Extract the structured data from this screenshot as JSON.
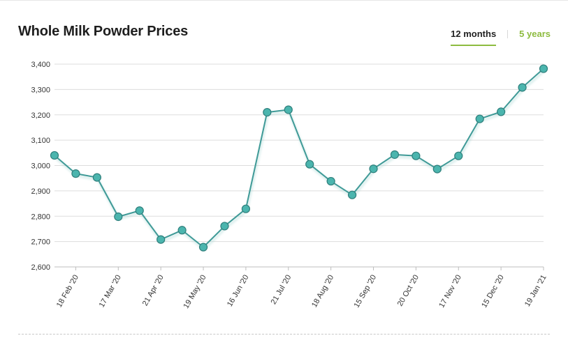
{
  "header": {
    "title": "Whole Milk Powder Prices",
    "range_tabs": [
      {
        "label": "12 months",
        "active": true
      },
      {
        "label": "5 years",
        "active": false
      }
    ]
  },
  "colors": {
    "line": "#3f9a97",
    "marker_fill": "#4bb5ae",
    "marker_stroke": "#2f7f7c",
    "grid": "#dddddd",
    "accent": "#8dbb3f"
  },
  "chart_data": {
    "type": "line",
    "title": "Whole Milk Powder Prices",
    "xlabel": "",
    "ylabel": "",
    "ylim": [
      2600,
      3400
    ],
    "y_ticks": [
      2600,
      2700,
      2800,
      2900,
      3000,
      3100,
      3200,
      3300,
      3400
    ],
    "y_tick_labels": [
      "2,600",
      "2,700",
      "2,800",
      "2,900",
      "3,000",
      "3,100",
      "3,200",
      "3,300",
      "3,400"
    ],
    "grid": true,
    "x_tick_labels": [
      {
        "index": 1,
        "label": "18 Feb '20"
      },
      {
        "index": 3,
        "label": "17 Mar '20"
      },
      {
        "index": 5,
        "label": "21 Apr '20"
      },
      {
        "index": 7,
        "label": "19 May '20"
      },
      {
        "index": 9,
        "label": "16 Jun '20"
      },
      {
        "index": 11,
        "label": "21 Jul '20"
      },
      {
        "index": 13,
        "label": "18 Aug '20"
      },
      {
        "index": 15,
        "label": "15 Sep '20"
      },
      {
        "index": 17,
        "label": "20 Oct '20"
      },
      {
        "index": 19,
        "label": "17 Nov '20"
      },
      {
        "index": 21,
        "label": "15 Dec '20"
      },
      {
        "index": 23,
        "label": "19 Jan '21"
      }
    ],
    "values": [
      3040,
      2968,
      2953,
      2798,
      2822,
      2708,
      2745,
      2678,
      2761,
      2829,
      3210,
      3220,
      3005,
      2938,
      2884,
      2987,
      3043,
      3038,
      2986,
      3038,
      3184,
      3212,
      3308,
      3382
    ]
  }
}
